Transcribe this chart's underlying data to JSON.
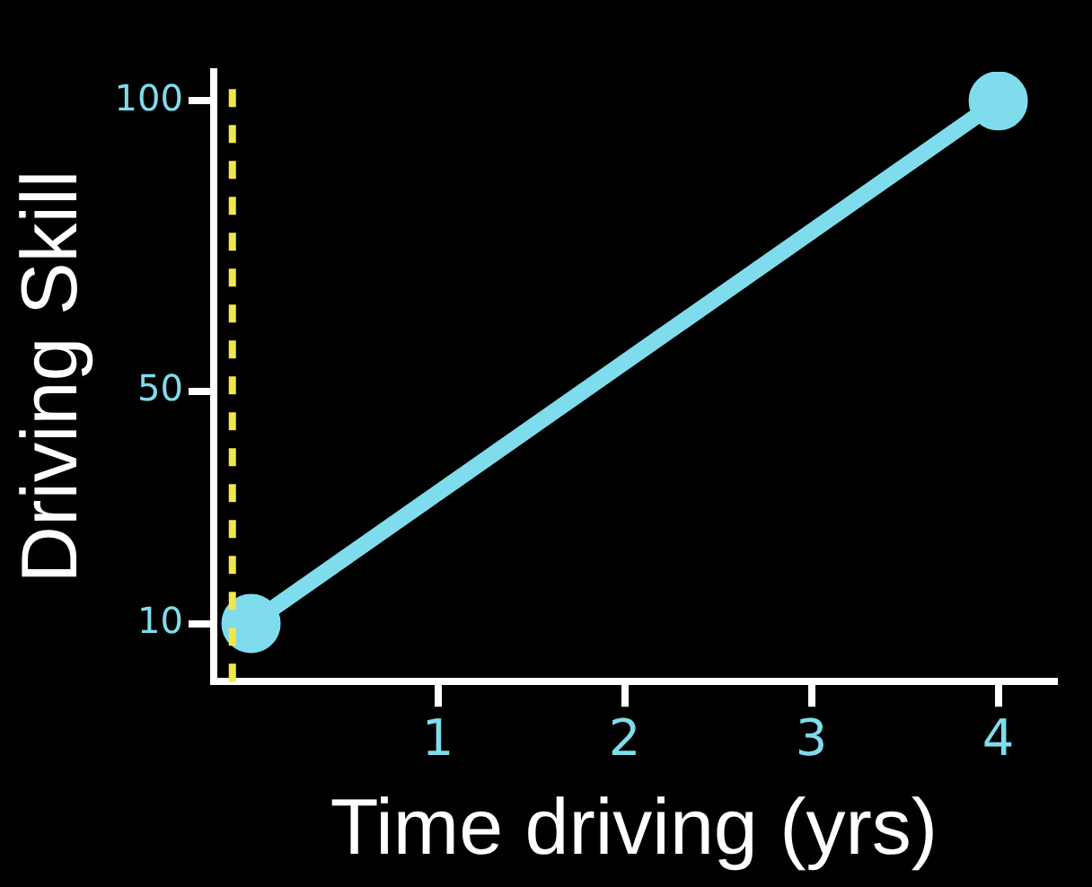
{
  "chart_data": {
    "type": "line",
    "xlabel": "Time driving (yrs)",
    "ylabel": "Driving Skill",
    "x": [
      0,
      4
    ],
    "series": [
      {
        "color": "#7fdcec",
        "values": [
          10,
          100
        ]
      }
    ],
    "xlim": [
      -0.2,
      4.3
    ],
    "xticks": [
      1,
      2,
      3,
      4
    ],
    "ylim": [
      0,
      105
    ],
    "yticks": [
      10,
      50,
      100
    ],
    "ref_lines": [
      {
        "axis": "x",
        "value": -0.1,
        "color": "#f2e84a",
        "line_style": "dashed"
      }
    ],
    "grid": false,
    "legend": false,
    "marker": "circle",
    "line_style": "solid"
  }
}
